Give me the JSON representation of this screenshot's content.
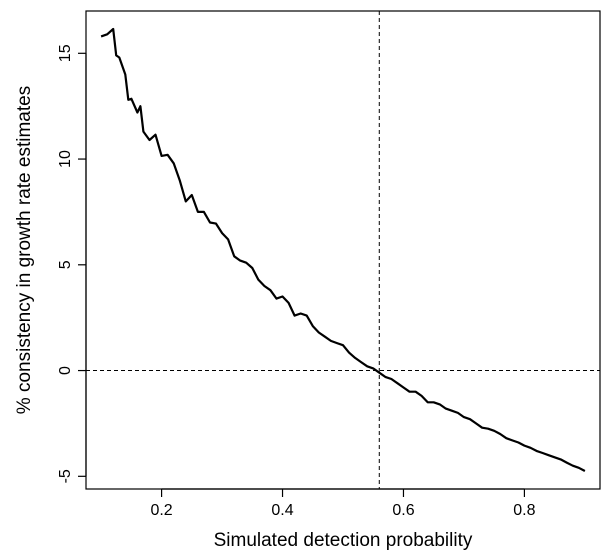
{
  "chart_data": {
    "type": "line",
    "title": "",
    "xlabel": "Simulated detection probability",
    "ylabel": "% consistency in growth rate estimates",
    "xlim": [
      0.075,
      0.925
    ],
    "ylim": [
      -5.6,
      17.0
    ],
    "x_ticks": [
      0.2,
      0.4,
      0.6,
      0.8
    ],
    "x_tick_labels": [
      "0.2",
      "0.4",
      "0.6",
      "0.8"
    ],
    "y_ticks": [
      -5,
      0,
      5,
      10,
      15
    ],
    "y_tick_labels": [
      "-5",
      "0",
      "5",
      "10",
      "15"
    ],
    "grid": false,
    "legend": "none",
    "reference_lines": [
      {
        "orientation": "vertical",
        "value": 0.56,
        "style": "dashed"
      },
      {
        "orientation": "horizontal",
        "value": 0,
        "style": "dashed"
      }
    ],
    "series": [
      {
        "color": "#000000",
        "x": [
          0.1,
          0.11,
          0.12,
          0.125,
          0.13,
          0.14,
          0.145,
          0.15,
          0.16,
          0.165,
          0.17,
          0.18,
          0.19,
          0.2,
          0.21,
          0.22,
          0.23,
          0.24,
          0.25,
          0.26,
          0.27,
          0.28,
          0.29,
          0.3,
          0.31,
          0.32,
          0.33,
          0.34,
          0.35,
          0.36,
          0.37,
          0.38,
          0.39,
          0.4,
          0.41,
          0.42,
          0.43,
          0.44,
          0.45,
          0.46,
          0.47,
          0.48,
          0.49,
          0.5,
          0.51,
          0.52,
          0.53,
          0.54,
          0.55,
          0.56,
          0.57,
          0.58,
          0.59,
          0.6,
          0.61,
          0.62,
          0.63,
          0.64,
          0.65,
          0.66,
          0.67,
          0.68,
          0.69,
          0.7,
          0.71,
          0.72,
          0.73,
          0.74,
          0.75,
          0.76,
          0.77,
          0.78,
          0.79,
          0.8,
          0.81,
          0.82,
          0.83,
          0.84,
          0.85,
          0.86,
          0.87,
          0.88,
          0.89,
          0.9
        ],
        "y": [
          15.8,
          15.9,
          16.15,
          14.9,
          14.8,
          14.0,
          12.8,
          12.85,
          12.2,
          12.5,
          11.3,
          10.9,
          11.15,
          10.15,
          10.2,
          9.8,
          9.0,
          8.0,
          8.3,
          7.5,
          7.5,
          7.0,
          6.95,
          6.5,
          6.2,
          5.4,
          5.2,
          5.1,
          4.85,
          4.3,
          4.0,
          3.8,
          3.4,
          3.5,
          3.2,
          2.6,
          2.7,
          2.6,
          2.1,
          1.8,
          1.6,
          1.4,
          1.3,
          1.2,
          0.85,
          0.6,
          0.4,
          0.2,
          0.1,
          -0.1,
          -0.3,
          -0.4,
          -0.6,
          -0.8,
          -1.0,
          -1.0,
          -1.2,
          -1.5,
          -1.5,
          -1.6,
          -1.8,
          -1.9,
          -2.0,
          -2.2,
          -2.3,
          -2.5,
          -2.7,
          -2.75,
          -2.85,
          -3.0,
          -3.2,
          -3.3,
          -3.4,
          -3.55,
          -3.65,
          -3.8,
          -3.9,
          -4.0,
          -4.1,
          -4.2,
          -4.35,
          -4.5,
          -4.6,
          -4.75
        ]
      }
    ]
  }
}
